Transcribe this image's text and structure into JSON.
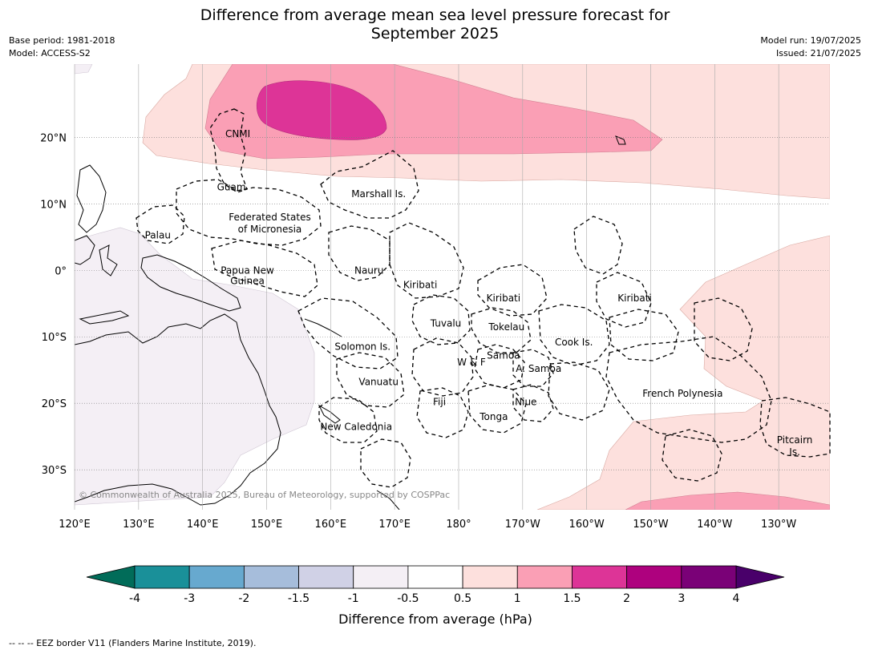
{
  "header": {
    "title_line1": "Difference from average mean sea level pressure forecast for",
    "title_line2": "September 2025",
    "base_period": "Base period: 1981-2018",
    "model": "Model: ACCESS-S2",
    "model_run": "Model run: 19/07/2025",
    "issued": "Issued: 21/07/2025"
  },
  "map": {
    "lon_range": [
      120,
      238
    ],
    "lat_range": [
      -36,
      31
    ],
    "lon_ticks": [
      {
        "value": 120,
        "label": "120°E"
      },
      {
        "value": 130,
        "label": "130°E"
      },
      {
        "value": 140,
        "label": "140°E"
      },
      {
        "value": 150,
        "label": "150°E"
      },
      {
        "value": 160,
        "label": "160°E"
      },
      {
        "value": 170,
        "label": "170°E"
      },
      {
        "value": 180,
        "label": "180°"
      },
      {
        "value": 190,
        "label": "170°W"
      },
      {
        "value": 200,
        "label": "160°W"
      },
      {
        "value": 210,
        "label": "150°W"
      },
      {
        "value": 220,
        "label": "140°W"
      },
      {
        "value": 230,
        "label": "130°W"
      }
    ],
    "lat_ticks": [
      {
        "value": 20,
        "label": "20°N"
      },
      {
        "value": 10,
        "label": "10°N"
      },
      {
        "value": 0,
        "label": "0°"
      },
      {
        "value": -10,
        "label": "10°S"
      },
      {
        "value": -20,
        "label": "20°S"
      },
      {
        "value": -30,
        "label": "30°S"
      }
    ],
    "regions": [
      {
        "name": "CNMI",
        "lon": 145.5,
        "lat": 20.5
      },
      {
        "name": "Guam",
        "lon": 144.5,
        "lat": 12.5
      },
      {
        "name": "Marshall Is.",
        "lon": 167.5,
        "lat": 11.5
      },
      {
        "name": "Federated States",
        "lon": 150.5,
        "lat": 8.0
      },
      {
        "name": "of Micronesia",
        "lon": 150.5,
        "lat": 6.2
      },
      {
        "name": "Palau",
        "lon": 133.0,
        "lat": 5.3
      },
      {
        "name": "Papua New",
        "lon": 147.0,
        "lat": 0.0
      },
      {
        "name": "Guinea",
        "lon": 147.0,
        "lat": -1.6
      },
      {
        "name": "Nauru",
        "lon": 166.0,
        "lat": 0.0
      },
      {
        "name": "Kiribati",
        "lon": 174.0,
        "lat": -2.2
      },
      {
        "name": "Kiribati",
        "lon": 187.0,
        "lat": -4.2
      },
      {
        "name": "Kiribati",
        "lon": 207.5,
        "lat": -4.2
      },
      {
        "name": "Tuvalu",
        "lon": 178.0,
        "lat": -8.0
      },
      {
        "name": "Tokelau",
        "lon": 187.5,
        "lat": -8.5
      },
      {
        "name": "Solomon Is.",
        "lon": 165.0,
        "lat": -11.5
      },
      {
        "name": "Cook Is.",
        "lon": 198.0,
        "lat": -10.8
      },
      {
        "name": "Samoa",
        "lon": 187.0,
        "lat": -12.8
      },
      {
        "name": "W & F",
        "lon": 182.0,
        "lat": -13.8
      },
      {
        "name": "A. Samoa",
        "lon": 192.5,
        "lat": -14.8
      },
      {
        "name": "Vanuatu",
        "lon": 167.5,
        "lat": -16.8
      },
      {
        "name": "Fiji",
        "lon": 177.0,
        "lat": -19.8
      },
      {
        "name": "Niue",
        "lon": 190.5,
        "lat": -19.8
      },
      {
        "name": "French Polynesia",
        "lon": 215.0,
        "lat": -18.5
      },
      {
        "name": "Tonga",
        "lon": 185.5,
        "lat": -22.0
      },
      {
        "name": "New Caledonia",
        "lon": 164.0,
        "lat": -23.5
      },
      {
        "name": "Pitcairn",
        "lon": 232.5,
        "lat": -25.5
      },
      {
        "name": "Is.",
        "lon": 232.5,
        "lat": -27.3
      }
    ],
    "copyright": "© Commonwealth of Australia 2025, Bureau of Meteorology, supported by COSPPac"
  },
  "colorbar": {
    "label": "Difference from average (hPa)",
    "ticks": [
      "-4",
      "-3",
      "-2",
      "-1.5",
      "-1",
      "-0.5",
      "0.5",
      "1",
      "1.5",
      "2",
      "3",
      "4"
    ],
    "colors": [
      "#1a9099",
      "#67a9cf",
      "#a6bddb",
      "#d0d1e6",
      "#f4eff5",
      "#ffffff",
      "#fde0dd",
      "#fa9fb5",
      "#dd3497",
      "#ae017e",
      "#7a0177"
    ],
    "under_color": "#016c59",
    "over_color": "#49006a"
  },
  "colors": {
    "level_0_5_to_1": "#fde0dd",
    "level_1_to_1_5": "#fa9fb5",
    "level_1_5_to_2": "#dd3497",
    "level_neg_1_to_neg_0_5": "#f4eff5"
  },
  "footnote": "--  --  -- EEZ border V11 (Flanders Marine Institute, 2019)."
}
